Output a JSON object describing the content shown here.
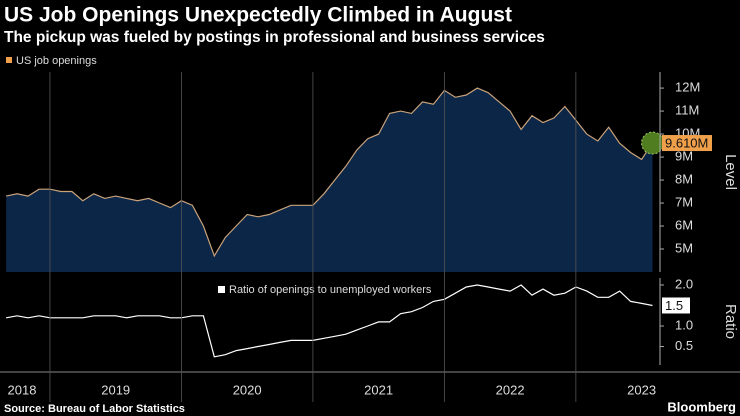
{
  "header": {
    "title": "US Job Openings Unexpectedly Climbed in August",
    "subtitle": "The pickup was fueled by postings in professional and business services"
  },
  "footer": {
    "source": "Source: Bureau of Labor Statistics",
    "brand": "Bloomberg"
  },
  "chart_data": [
    {
      "type": "area",
      "ylabel": "Level",
      "series": [
        {
          "name": "US job openings",
          "color": "#f0a04b",
          "line_color": "#c9a27a",
          "fill": "#0b2647",
          "values": [
            7.3,
            7.4,
            7.3,
            7.6,
            7.6,
            7.5,
            7.5,
            7.1,
            7.4,
            7.2,
            7.3,
            7.2,
            7.1,
            7.2,
            7.0,
            6.8,
            7.1,
            6.9,
            6.0,
            4.7,
            5.5,
            6.0,
            6.5,
            6.4,
            6.5,
            6.7,
            6.9,
            6.9,
            6.9,
            7.4,
            8.0,
            8.6,
            9.3,
            9.8,
            10.0,
            10.9,
            11.0,
            10.9,
            11.4,
            11.3,
            11.9,
            11.6,
            11.7,
            12.0,
            11.8,
            11.4,
            11.0,
            10.2,
            10.8,
            10.5,
            10.7,
            11.2,
            10.6,
            10.0,
            9.7,
            10.3,
            9.6,
            9.2,
            8.9,
            9.61
          ],
          "value_labels": [
            null,
            null,
            null,
            null,
            null,
            null,
            null,
            null,
            null,
            null,
            null,
            null,
            null,
            null,
            null,
            null,
            null,
            null,
            null,
            null,
            null,
            null,
            null,
            null,
            null,
            null,
            null,
            null,
            null,
            null,
            null,
            null,
            null,
            null,
            null,
            null,
            null,
            null,
            null,
            null,
            null,
            null,
            null,
            null,
            null,
            null,
            null,
            null,
            null,
            null,
            null,
            null,
            null,
            null,
            null,
            null,
            null,
            null,
            null,
            "9.610M"
          ]
        }
      ],
      "x": [
        2018.6667,
        2018.75,
        2018.8333,
        2018.9167,
        2019.0,
        2019.0833,
        2019.1667,
        2019.25,
        2019.3333,
        2019.4167,
        2019.5,
        2019.5833,
        2019.6667,
        2019.75,
        2019.8333,
        2019.9167,
        2020.0,
        2020.0833,
        2020.1667,
        2020.25,
        2020.3333,
        2020.4167,
        2020.5,
        2020.5833,
        2020.6667,
        2020.75,
        2020.8333,
        2020.9167,
        2021.0,
        2021.0833,
        2021.1667,
        2021.25,
        2021.3333,
        2021.4167,
        2021.5,
        2021.5833,
        2021.6667,
        2021.75,
        2021.8333,
        2021.9167,
        2022.0,
        2022.0833,
        2022.1667,
        2022.25,
        2022.3333,
        2022.4167,
        2022.5,
        2022.5833,
        2022.6667,
        2022.75,
        2022.8333,
        2022.9167,
        2023.0,
        2023.0833,
        2023.1667,
        2023.25,
        2023.3333,
        2023.4167,
        2023.5,
        2023.5833
      ],
      "xlim": [
        2018.62,
        2023.64
      ],
      "ylim": [
        4,
        12.7
      ],
      "yticks": [
        {
          "value": 5,
          "label": "5M"
        },
        {
          "value": 6,
          "label": "6M"
        },
        {
          "value": 7,
          "label": "7M"
        },
        {
          "value": 8,
          "label": "8M"
        },
        {
          "value": 9,
          "label": "9M"
        },
        {
          "value": 10,
          "label": "10M"
        },
        {
          "value": 11,
          "label": "11M"
        },
        {
          "value": 12,
          "label": "12M"
        }
      ]
    },
    {
      "type": "line",
      "ylabel": "Ratio",
      "series": [
        {
          "name": "Ratio of openings to unemployed workers",
          "color": "#ffffff",
          "values": [
            1.2,
            1.25,
            1.2,
            1.25,
            1.2,
            1.2,
            1.2,
            1.2,
            1.25,
            1.25,
            1.25,
            1.2,
            1.25,
            1.25,
            1.25,
            1.2,
            1.2,
            1.25,
            1.25,
            0.25,
            0.3,
            0.4,
            0.45,
            0.5,
            0.55,
            0.6,
            0.65,
            0.65,
            0.65,
            0.7,
            0.75,
            0.8,
            0.9,
            1.0,
            1.1,
            1.1,
            1.3,
            1.35,
            1.45,
            1.6,
            1.65,
            1.8,
            1.95,
            2.0,
            1.95,
            1.9,
            1.85,
            2.0,
            1.75,
            1.9,
            1.75,
            1.8,
            1.95,
            1.85,
            1.7,
            1.7,
            1.85,
            1.6,
            1.55,
            1.5
          ]
        }
      ],
      "x": [
        2018.6667,
        2018.75,
        2018.8333,
        2018.9167,
        2019.0,
        2019.0833,
        2019.1667,
        2019.25,
        2019.3333,
        2019.4167,
        2019.5,
        2019.5833,
        2019.6667,
        2019.75,
        2019.8333,
        2019.9167,
        2020.0,
        2020.0833,
        2020.1667,
        2020.25,
        2020.3333,
        2020.4167,
        2020.5,
        2020.5833,
        2020.6667,
        2020.75,
        2020.8333,
        2020.9167,
        2021.0,
        2021.0833,
        2021.1667,
        2021.25,
        2021.3333,
        2021.4167,
        2021.5,
        2021.5833,
        2021.6667,
        2021.75,
        2021.8333,
        2021.9167,
        2022.0,
        2022.0833,
        2022.1667,
        2022.25,
        2022.3333,
        2022.4167,
        2022.5,
        2022.5833,
        2022.6667,
        2022.75,
        2022.8333,
        2022.9167,
        2023.0,
        2023.0833,
        2023.1667,
        2023.25,
        2023.3333,
        2023.4167,
        2023.5,
        2023.5833
      ],
      "xlim": [
        2018.62,
        2023.64
      ],
      "xticks": [
        {
          "value": 2018.5,
          "label": "2018"
        },
        {
          "value": 2019.5,
          "label": "2019"
        },
        {
          "value": 2020.5,
          "label": "2020"
        },
        {
          "value": 2021.5,
          "label": "2021"
        },
        {
          "value": 2022.5,
          "label": "2022"
        },
        {
          "value": 2023.5,
          "label": "2023"
        }
      ],
      "ylim": [
        0.05,
        2.17
      ],
      "yticks": [
        0.5,
        {
          "value": 1,
          "label": "1.0"
        },
        {
          "value": 2,
          "label": "2.0"
        }
      ]
    }
  ]
}
